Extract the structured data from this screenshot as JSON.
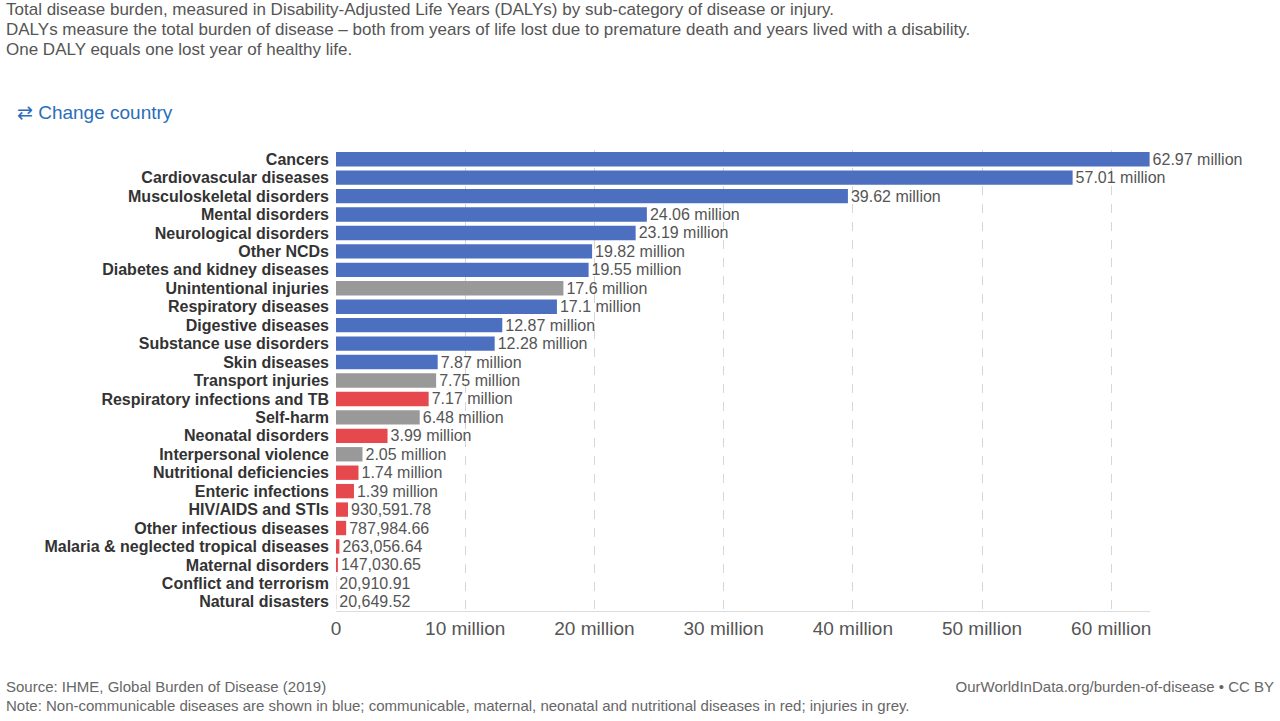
{
  "chart_data": {
    "type": "bar",
    "orientation": "horizontal",
    "title": "Total disease burden, measured in Disability-Adjusted Life Years (DALYs) by sub-category of disease or injury.",
    "subtitle": [
      "DALYs measure the total burden of disease – both from years of life lost due to premature death and years lived with a disability.",
      "One DALY equals one lost year of healthy life."
    ],
    "annotations": [
      "⇄ Change country",
      "Source: IHME, Global Burden of Disease (2019)",
      "OurWorldInData.org/burden-of-disease • CC BY",
      "Note: Non-communicable diseases are shown in blue; communicable, maternal, neonatal and nutritional diseases in red; injuries in grey."
    ],
    "categories": [
      "Cancers",
      "Cardiovascular diseases",
      "Musculoskeletal disorders",
      "Mental disorders",
      "Neurological disorders",
      "Other NCDs",
      "Diabetes and kidney diseases",
      "Unintentional injuries",
      "Respiratory diseases",
      "Digestive diseases",
      "Substance use disorders",
      "Skin diseases",
      "Transport injuries",
      "Respiratory infections and TB",
      "Self-harm",
      "Neonatal disorders",
      "Interpersonal violence",
      "Nutritional deficiencies",
      "Enteric infections",
      "HIV/AIDS and STIs",
      "Other infectious diseases",
      "Malaria & neglected tropical diseases",
      "Maternal disorders",
      "Conflict and terrorism",
      "Natural disasters"
    ],
    "values": [
      62970000,
      57010000,
      39620000,
      24060000,
      23190000,
      19820000,
      19550000,
      17600000,
      17100000,
      12870000,
      12280000,
      7870000,
      7750000,
      7170000,
      6480000,
      3990000,
      2050000,
      1740000,
      1390000,
      930591.78,
      787984.66,
      263056.64,
      147030.65,
      20910.91,
      20649.52
    ],
    "value_labels": [
      "62.97 million",
      "57.01 million",
      "39.62 million",
      "24.06 million",
      "23.19 million",
      "19.82 million",
      "19.55 million",
      "17.6 million",
      "17.1 million",
      "12.87 million",
      "12.28 million",
      "7.87 million",
      "7.75 million",
      "7.17 million",
      "6.48 million",
      "3.99 million",
      "2.05 million",
      "1.74 million",
      "1.39 million",
      "930,591.78",
      "787,984.66",
      "263,056.64",
      "147,030.65",
      "20,910.91",
      "20,649.52"
    ],
    "colors": [
      "#4c6fbf",
      "#4c6fbf",
      "#4c6fbf",
      "#4c6fbf",
      "#4c6fbf",
      "#4c6fbf",
      "#4c6fbf",
      "#999999",
      "#4c6fbf",
      "#4c6fbf",
      "#4c6fbf",
      "#4c6fbf",
      "#999999",
      "#e5484d",
      "#999999",
      "#e5484d",
      "#999999",
      "#e5484d",
      "#e5484d",
      "#e5484d",
      "#e5484d",
      "#e5484d",
      "#e5484d",
      "#999999",
      "#999999"
    ],
    "xlim": [
      0,
      63000000
    ],
    "xticks": [
      0,
      {
        "value": 10000000,
        "label": "10 million"
      },
      {
        "value": 20000000,
        "label": "20 million"
      },
      {
        "value": 30000000,
        "label": "30 million"
      },
      {
        "value": 40000000,
        "label": "40 million"
      },
      {
        "value": 50000000,
        "label": "50 million"
      },
      {
        "value": 60000000,
        "label": "60 million"
      }
    ],
    "grid": true,
    "data_labels": true
  }
}
